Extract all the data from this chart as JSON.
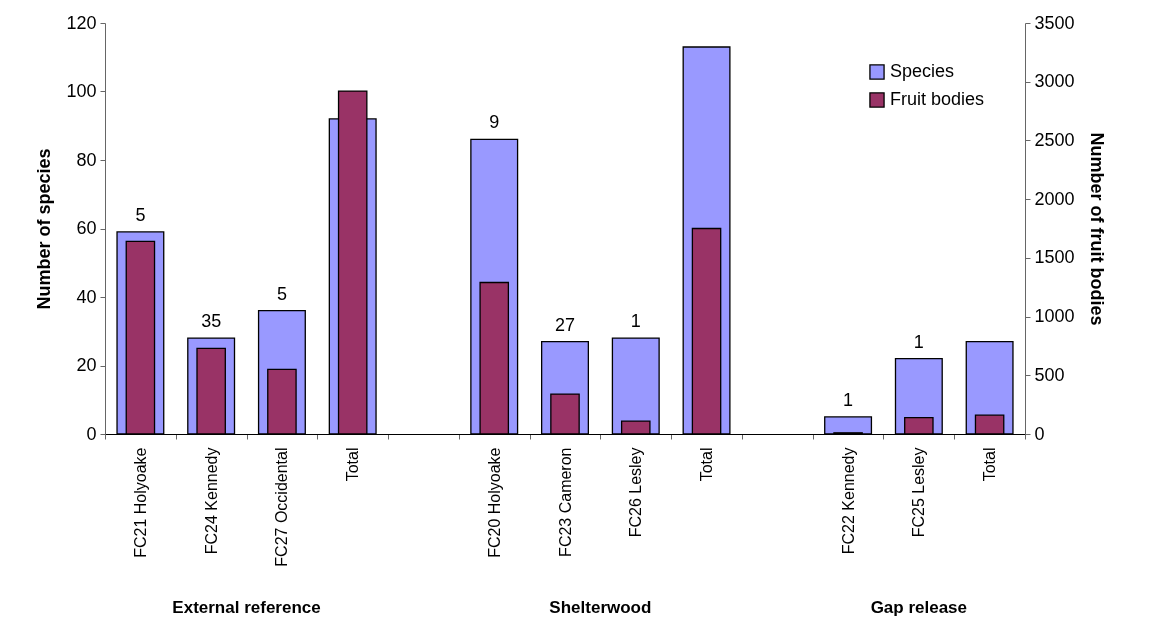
{
  "chart_data": {
    "type": "bar",
    "ylabel": "Number of species",
    "y2label": "Number of fruit bodies",
    "categories": [
      "FC21 Holyoake",
      "FC24 Kennedy",
      "FC27 Occidental",
      "Total",
      null,
      "FC20 Holyoake",
      "FC23 Cameron",
      "FC26 Lesley",
      "Total",
      null,
      "FC22 Kennedy",
      "FC25 Lesley",
      "Total"
    ],
    "series": [
      {
        "name": "Species",
        "color": "#9999ff",
        "values": [
          59,
          28,
          36,
          92,
          null,
          86,
          27,
          28,
          113,
          null,
          5,
          22,
          27
        ]
      },
      {
        "name": "Fruit bodies",
        "color": "#993366",
        "axis": "y2",
        "values": [
          1640,
          730,
          550,
          2920,
          null,
          1290,
          340,
          110,
          1750,
          null,
          10,
          140,
          160
        ]
      }
    ],
    "ylim": [
      0,
      120
    ],
    "yticks": [
      0,
      20,
      40,
      60,
      80,
      100,
      120
    ],
    "y2lim": [
      0,
      3500
    ],
    "y2ticks": [
      0,
      500,
      1000,
      1500,
      2000,
      2500,
      3000,
      3500
    ],
    "legend": "top right",
    "annotations": [
      {
        "text": "5",
        "x": "FC21 Holyoake",
        "y": 59
      },
      {
        "text": "35",
        "x": "FC24 Kennedy",
        "y": 28
      },
      {
        "text": "5",
        "x": "FC27 Occidental",
        "y": 36
      },
      {
        "text": "9",
        "x": "FC20 Holyoake",
        "y": 86
      },
      {
        "text": "27",
        "x": "FC23 Cameron",
        "y": 27
      },
      {
        "text": "1",
        "x": "FC26 Lesley",
        "y": 28
      },
      {
        "text": "1",
        "x": "FC22 Kennedy",
        "y": 5
      },
      {
        "text": "1",
        "x": "FC25 Lesley",
        "y": 22
      },
      "External reference",
      "Shelterwood",
      "Gap release"
    ]
  }
}
